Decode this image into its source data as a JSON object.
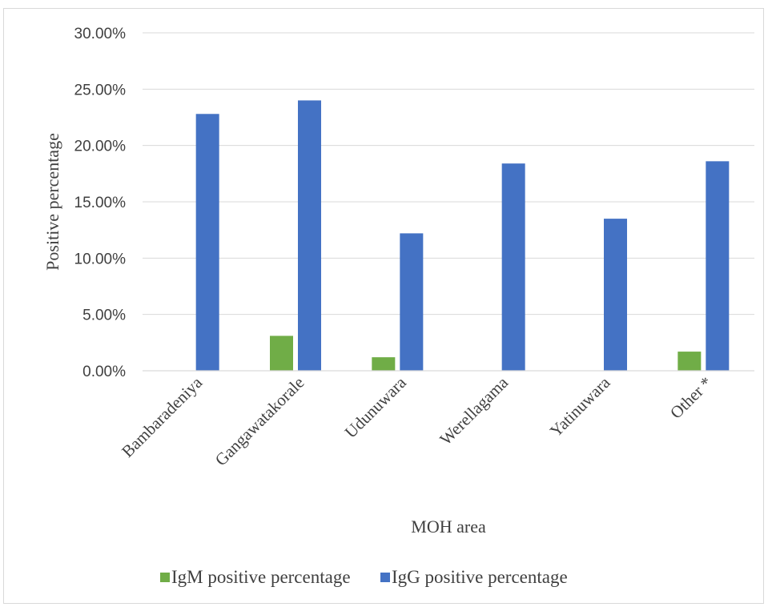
{
  "chart_data": {
    "type": "bar",
    "categories": [
      "Bambaradeniya",
      "Gangawatakorale",
      "Udunuwara",
      "Werellagama",
      "Yatinuwara",
      "Other *"
    ],
    "series": [
      {
        "name": "IgM positive percentage",
        "color": "#70ad47",
        "values": [
          0.0,
          3.1,
          1.2,
          0.0,
          0.0,
          1.7
        ]
      },
      {
        "name": "IgG positive percentage",
        "color": "#4472c4",
        "values": [
          22.8,
          24.0,
          12.2,
          18.4,
          13.5,
          18.6
        ]
      }
    ],
    "xlabel": "MOH area",
    "ylabel": "Positive percentage",
    "ylim": [
      0,
      30
    ],
    "yticks": [
      "0.00%",
      "5.00%",
      "10.00%",
      "15.00%",
      "20.00%",
      "25.00%",
      "30.00%"
    ],
    "grid": true,
    "legend_position": "bottom"
  }
}
